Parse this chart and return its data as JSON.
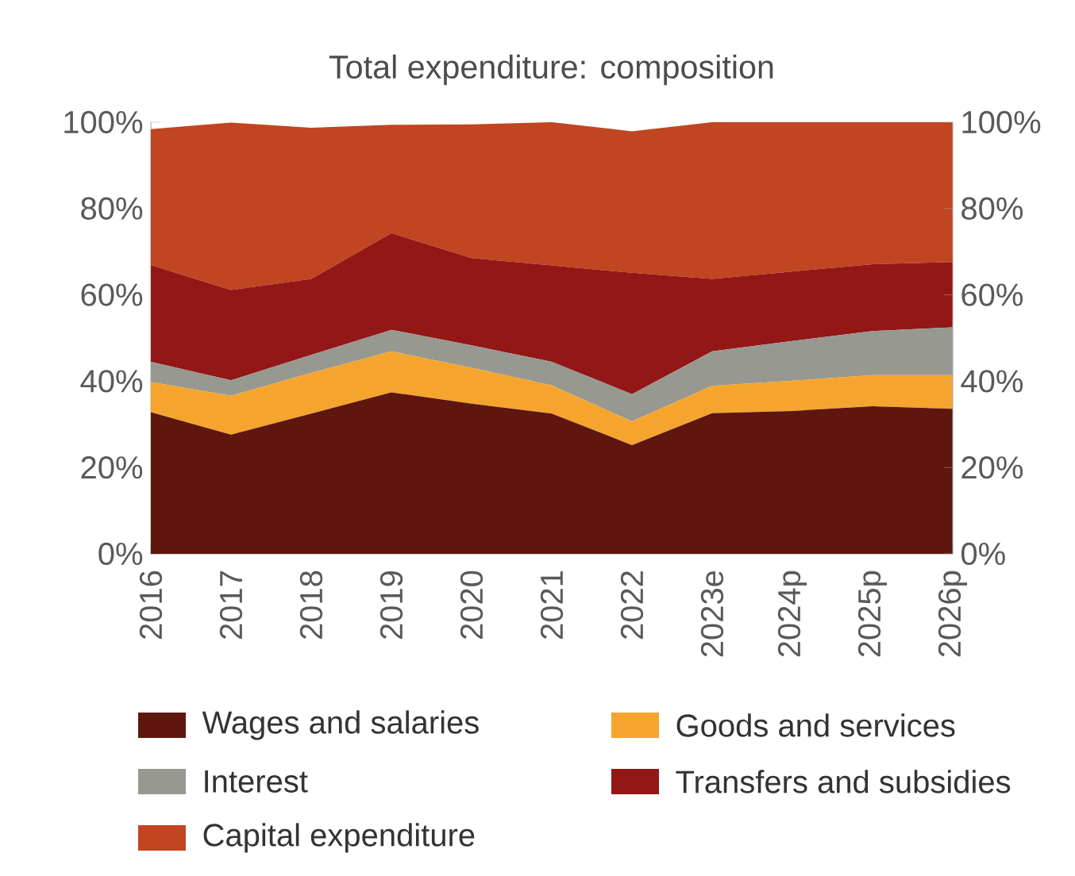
{
  "chart_data": {
    "type": "area",
    "title": "Total expenditure: composition",
    "stacked": true,
    "legend": "bottom",
    "categories": [
      "2016",
      "2017",
      "2018",
      "2019",
      "2020",
      "2021",
      "2022",
      "2023e",
      "2024p",
      "2025p",
      "2026p"
    ],
    "series": [
      {
        "name": "Wages and salaries",
        "color": "#5e160e",
        "values": [
          32.8,
          27.6,
          32.5,
          37.4,
          34.8,
          32.5,
          25.2,
          32.6,
          33.1,
          34.2,
          33.6
        ]
      },
      {
        "name": "Goods and services",
        "color": "#f5a52e",
        "values": [
          7.0,
          9.0,
          9.4,
          9.5,
          8.3,
          6.5,
          5.5,
          6.3,
          7.0,
          7.2,
          7.8
        ]
      },
      {
        "name": "Interest",
        "color": "#979890",
        "values": [
          4.7,
          3.6,
          4.2,
          5.0,
          5.2,
          5.5,
          6.3,
          8.0,
          9.2,
          10.2,
          11.1
        ]
      },
      {
        "name": "Transfers and subsidies",
        "color": "#931716",
        "values": [
          22.4,
          20.9,
          17.6,
          22.4,
          20.2,
          22.3,
          28.1,
          16.8,
          16.1,
          15.5,
          15.1
        ]
      },
      {
        "name": "Capital expenditure",
        "color": "#c04520",
        "values": [
          31.5,
          38.8,
          35.0,
          25.1,
          31.0,
          33.2,
          32.8,
          36.3,
          34.6,
          32.9,
          32.4
        ]
      }
    ],
    "ylim": [
      0,
      100
    ],
    "yticks": [
      {
        "value": 0,
        "label": "0%"
      },
      {
        "value": 20,
        "label": "20%"
      },
      {
        "value": 40,
        "label": "40%"
      },
      {
        "value": 60,
        "label": "60%"
      },
      {
        "value": 80,
        "label": "80%"
      },
      {
        "value": 100,
        "label": "100%"
      }
    ],
    "y2lim": [
      0,
      100
    ],
    "y2ticks": [
      {
        "value": 0,
        "label": "0%"
      },
      {
        "value": 20,
        "label": "20%"
      },
      {
        "value": 40,
        "label": "40%"
      },
      {
        "value": 60,
        "label": "60%"
      },
      {
        "value": 80,
        "label": "80%"
      },
      {
        "value": 100,
        "label": "100%"
      }
    ]
  }
}
